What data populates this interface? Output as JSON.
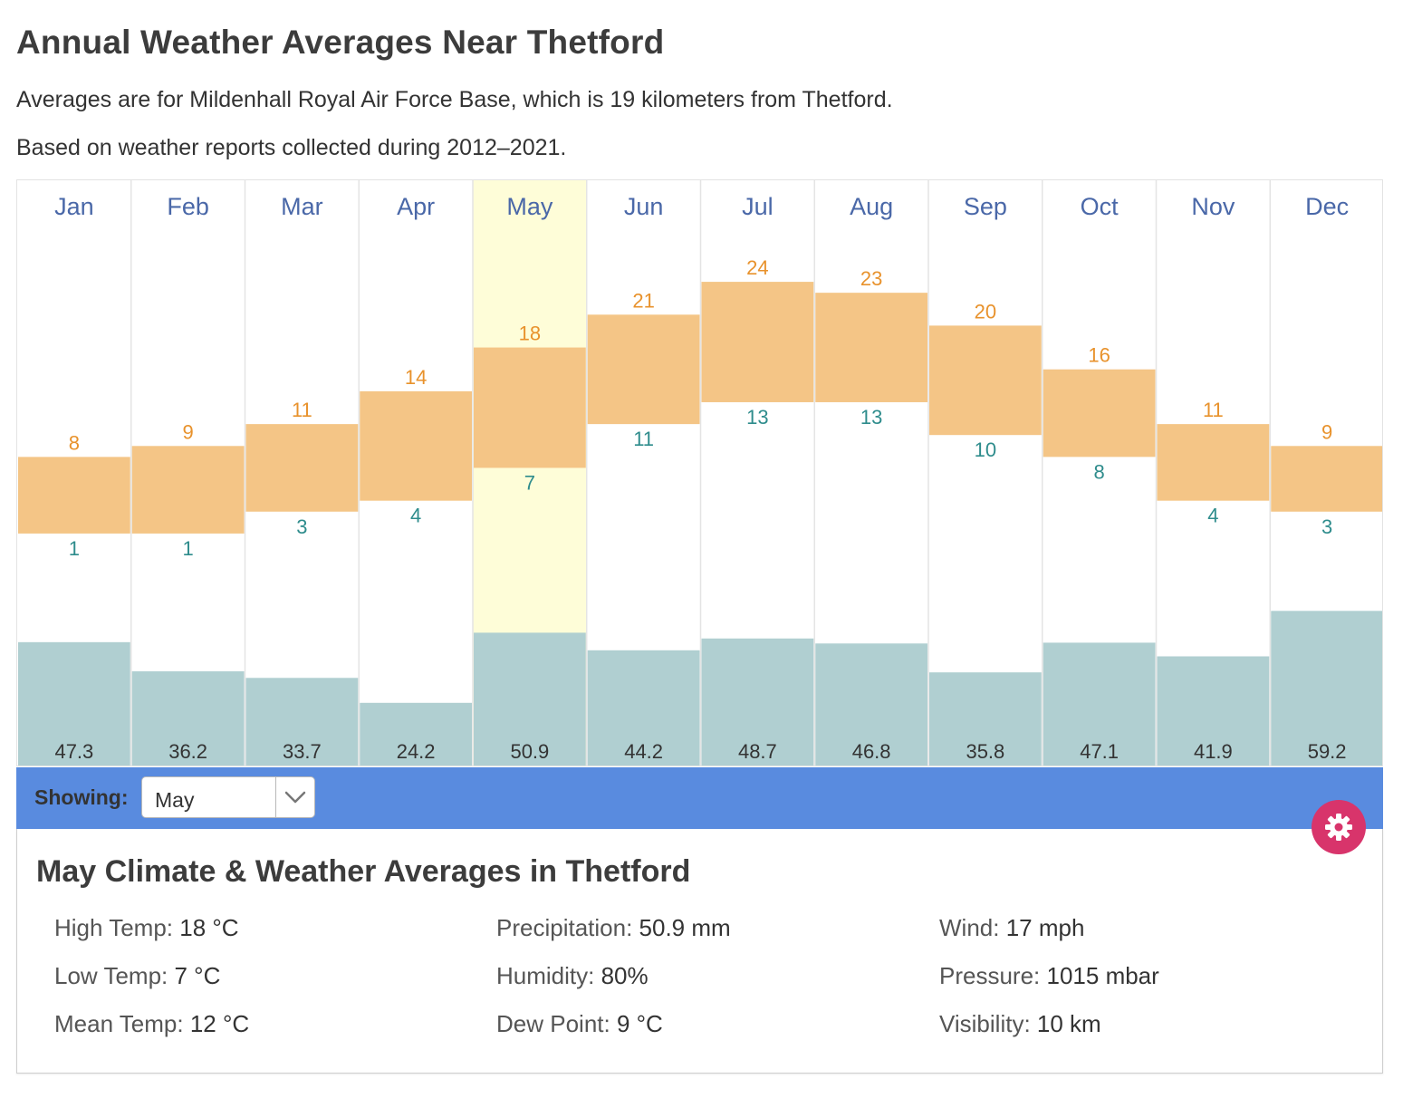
{
  "header": {
    "title": "Annual Weather Averages Near Thetford",
    "subtitle1": "Averages are for Mildenhall Royal Air Force Base, which is 19 kilometers from Thetford.",
    "subtitle2": "Based on weather reports collected during 2012–2021."
  },
  "chart_data": {
    "type": "bar",
    "categories": [
      "Jan",
      "Feb",
      "Mar",
      "Apr",
      "May",
      "Jun",
      "Jul",
      "Aug",
      "Sep",
      "Oct",
      "Nov",
      "Dec"
    ],
    "selected": "May",
    "series": [
      {
        "name": "High Temp (°C)",
        "values": [
          8,
          9,
          11,
          14,
          18,
          21,
          24,
          23,
          20,
          16,
          11,
          9
        ]
      },
      {
        "name": "Low Temp (°C)",
        "values": [
          1,
          1,
          3,
          4,
          7,
          11,
          13,
          13,
          10,
          8,
          4,
          3
        ]
      },
      {
        "name": "Precipitation (mm)",
        "values": [
          47.3,
          36.2,
          33.7,
          24.2,
          50.9,
          44.2,
          48.7,
          46.8,
          35.8,
          47.1,
          41.9,
          59.2
        ]
      }
    ],
    "colors": {
      "temp_band": "#f4c586",
      "high_label": "#e8922c",
      "low_label": "#2e8c8c",
      "precip_bar": "#b0cfd1",
      "precip_label": "#333333",
      "month_label": "#4a68a8",
      "highlight": "#fefdd8",
      "grid": "#e4e4e4"
    }
  },
  "toolbar": {
    "showing_label": "Showing:",
    "selected_month": "May",
    "background": "#598bdf"
  },
  "settings_button": {
    "icon": "gear-icon",
    "color": "#d8346b"
  },
  "details": {
    "title": "May Climate & Weather Averages in Thetford",
    "stats": [
      {
        "label": "High Temp:",
        "value": "18 °C"
      },
      {
        "label": "Low Temp:",
        "value": "7 °C"
      },
      {
        "label": "Mean Temp:",
        "value": "12 °C"
      },
      {
        "label": "Precipitation:",
        "value": "50.9 mm"
      },
      {
        "label": "Humidity:",
        "value": "80%"
      },
      {
        "label": "Dew Point:",
        "value": "9 °C"
      },
      {
        "label": "Wind:",
        "value": "17 mph"
      },
      {
        "label": "Pressure:",
        "value": "1015 mbar"
      },
      {
        "label": "Visibility:",
        "value": "10 km"
      }
    ]
  }
}
